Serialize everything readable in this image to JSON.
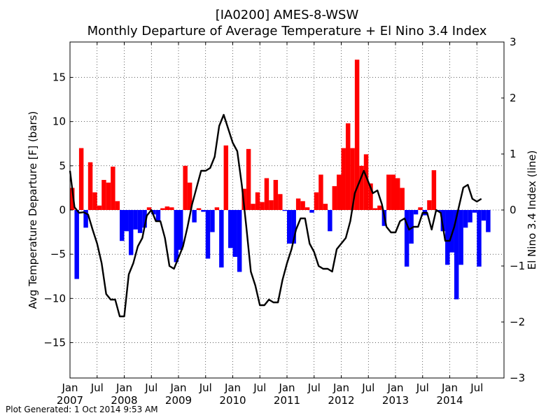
{
  "chart_data": {
    "type": "bar+line",
    "title": "[IA0200] AMES-8-WSW",
    "subtitle": "Monthly Departure of Average Temperature + El Nino 3.4 Index",
    "ylabel_left": "Avg Temperature Departure [F] (bars)",
    "ylabel_right": "El Nino 3.4 Index (line)",
    "ylim_left": [
      -19,
      19
    ],
    "ylim_right": [
      -3,
      3
    ],
    "yticks_left": [
      "15",
      "10",
      "5",
      "0",
      "−5",
      "−10",
      "−15"
    ],
    "yticks_right": [
      "3",
      "2",
      "1",
      "0",
      "−1",
      "−2",
      "−3"
    ],
    "xticks": [
      {
        "label": "Jan",
        "year": "2007"
      },
      {
        "label": "Jul",
        "year": ""
      },
      {
        "label": "Jan",
        "year": "2008"
      },
      {
        "label": "Jul",
        "year": ""
      },
      {
        "label": "Jan",
        "year": "2009"
      },
      {
        "label": "Jul",
        "year": ""
      },
      {
        "label": "Jan",
        "year": "2010"
      },
      {
        "label": "Jul",
        "year": ""
      },
      {
        "label": "Jan",
        "year": "2011"
      },
      {
        "label": "Jul",
        "year": ""
      },
      {
        "label": "Jan",
        "year": "2012"
      },
      {
        "label": "Jul",
        "year": ""
      },
      {
        "label": "Jan",
        "year": "2013"
      },
      {
        "label": "Jul",
        "year": ""
      },
      {
        "label": "Jan",
        "year": "2014"
      },
      {
        "label": "Jul",
        "year": ""
      }
    ],
    "start": "2007-01",
    "grid": true,
    "colors": {
      "positive": "#ff0000",
      "negative": "#0000ff",
      "line": "#000000"
    },
    "temperature_departure": [
      2.5,
      -7.8,
      7.0,
      -2.0,
      5.4,
      2.0,
      0.5,
      3.4,
      3.1,
      4.9,
      1.0,
      -3.5,
      -2.4,
      -5.1,
      -2.2,
      -2.6,
      -2.0,
      0.3,
      -0.5,
      -1.3,
      0.2,
      0.4,
      0.3,
      -5.9,
      -4.5,
      5.0,
      3.1,
      -1.4,
      0.2,
      -0.2,
      -5.5,
      -2.5,
      0.3,
      -6.5,
      7.3,
      -4.3,
      -5.3,
      -7.0,
      2.4,
      6.9,
      0.7,
      2.0,
      0.9,
      3.6,
      1.1,
      3.4,
      1.8,
      -0.1,
      -3.8,
      -3.8,
      1.3,
      1.0,
      0.3,
      -0.3,
      2.0,
      4.0,
      0.7,
      -2.4,
      2.7,
      4.0,
      7.0,
      9.8,
      7.0,
      17.0,
      5.0,
      6.3,
      3.0,
      0.2,
      0.5,
      -1.8,
      4.0,
      4.0,
      3.6,
      2.5,
      -6.4,
      -3.8,
      -0.5,
      0.3,
      -0.6,
      1.1,
      4.5,
      -0.2,
      -2.4,
      -6.2,
      -4.8,
      -10.1,
      -6.2,
      -2.0,
      -1.4,
      -0.3,
      -6.4,
      -1.2,
      -2.5
    ],
    "nino34": [
      0.7,
      0.05,
      -0.05,
      -0.04,
      -0.08,
      -0.35,
      -0.6,
      -0.95,
      -1.5,
      -1.6,
      -1.6,
      -1.9,
      -1.9,
      -1.15,
      -0.95,
      -0.65,
      -0.5,
      -0.1,
      0.0,
      -0.2,
      -0.2,
      -0.5,
      -1.0,
      -1.05,
      -0.85,
      -0.65,
      -0.3,
      0.1,
      0.4,
      0.7,
      0.7,
      0.75,
      0.95,
      1.5,
      1.7,
      1.45,
      1.2,
      1.05,
      0.45,
      -0.3,
      -1.1,
      -1.35,
      -1.7,
      -1.7,
      -1.6,
      -1.65,
      -1.65,
      -1.25,
      -0.95,
      -0.7,
      -0.35,
      -0.15,
      -0.15,
      -0.6,
      -0.75,
      -1.0,
      -1.05,
      -1.05,
      -1.1,
      -0.7,
      -0.6,
      -0.5,
      -0.2,
      0.3,
      0.5,
      0.7,
      0.5,
      0.3,
      0.35,
      0.1,
      -0.3,
      -0.4,
      -0.4,
      -0.2,
      -0.15,
      -0.35,
      -0.3,
      -0.3,
      -0.05,
      -0.05,
      -0.35,
      0.0,
      -0.05,
      -0.55,
      -0.55,
      -0.3,
      0.05,
      0.4,
      0.45,
      0.2,
      0.15,
      0.2
    ]
  },
  "footer": "Plot Generated: 1 Oct 2014 9:53 AM"
}
